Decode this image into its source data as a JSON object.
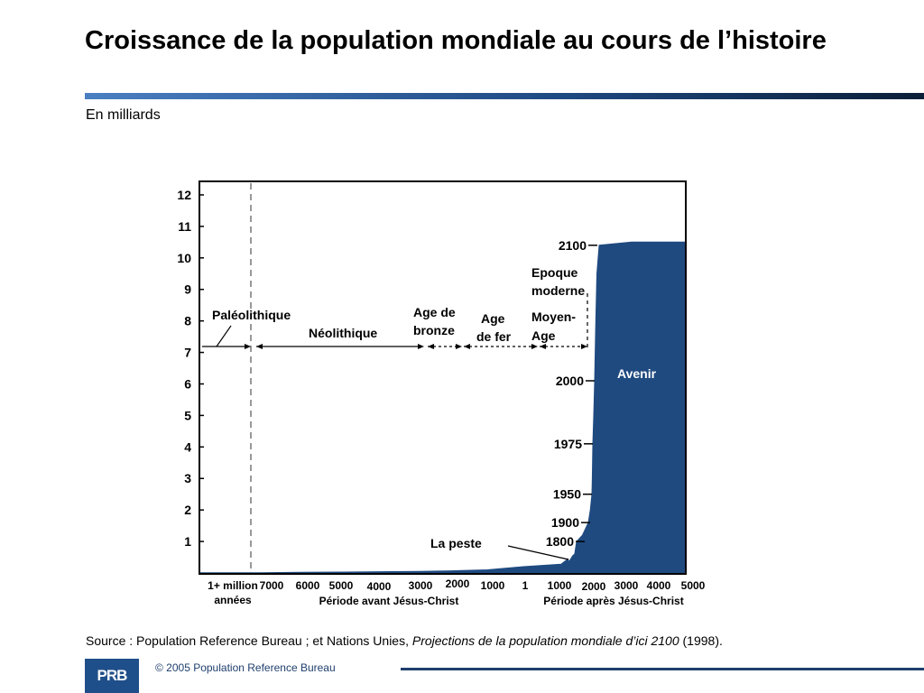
{
  "slide": {
    "title": "Croissance de la population mondiale au cours de l’histoire",
    "subtitle": "En milliards",
    "source_prefix": "Source : Population Reference Bureau ; et Nations Unies, ",
    "source_title": "Projections de la population mondiale d’ici 2100",
    "source_suffix": " (1998).",
    "logo_text": "PRB",
    "copyright": "© 2005 Population Reference Bureau"
  },
  "colors": {
    "fill": "#1f4a80",
    "title_rule_start": "#4a7fc1",
    "title_rule_end": "#0b1f38"
  },
  "chart_data": {
    "type": "area",
    "ylim": [
      0,
      12.4
    ],
    "y_ticks": [
      1,
      2,
      3,
      4,
      5,
      6,
      7,
      8,
      9,
      10,
      11,
      12
    ],
    "x_tick_labels": [
      "1+ million années",
      "7000",
      "6000",
      "5000",
      "4000",
      "3000",
      "2000",
      "1000",
      "1",
      "1000",
      "2000",
      "3000",
      "4000",
      "5000"
    ],
    "x_group_labels": [
      "Période avant Jésus-Christ",
      "Période après Jésus-Christ"
    ],
    "series": [
      {
        "x": [
          -1000000,
          -7000,
          -6000,
          -5000,
          -4000,
          -3000,
          -2000,
          -1000,
          1,
          1000,
          1250,
          1350,
          1400,
          1500,
          1600,
          1700,
          1800,
          1850,
          1900,
          1927,
          1950,
          1960,
          1975,
          1987,
          2000,
          2025,
          2050,
          2100,
          3000,
          4000,
          5000
        ],
        "y": [
          0.01,
          0.01,
          0.02,
          0.03,
          0.04,
          0.05,
          0.07,
          0.1,
          0.2,
          0.28,
          0.4,
          0.45,
          0.35,
          0.45,
          0.55,
          0.6,
          1.0,
          1.2,
          1.6,
          2.0,
          2.5,
          3.0,
          4.1,
          5.0,
          6.1,
          8.0,
          9.5,
          10.4,
          10.5,
          10.5,
          10.5
        ]
      }
    ],
    "year_markers": [
      {
        "label": "2100",
        "value": 10.4
      },
      {
        "label": "2000",
        "value": 6.1
      },
      {
        "label": "1975",
        "value": 4.1
      },
      {
        "label": "1950",
        "value": 2.5
      },
      {
        "label": "1900",
        "value": 1.6
      },
      {
        "label": "1800",
        "value": 1.0
      }
    ],
    "annotations": {
      "paleolithic": "Paléolithique",
      "neolithic": "Néolithique",
      "bronze_line1": "Age de",
      "bronze_line2": "bronze",
      "iron_line1": "Age",
      "iron_line2": "de fer",
      "middle_ages_line1": "Moyen-",
      "middle_ages_line2": "Age",
      "modern_line1": "Epoque",
      "modern_line2": "moderne",
      "future": "Avenir",
      "plague": "La peste"
    }
  }
}
